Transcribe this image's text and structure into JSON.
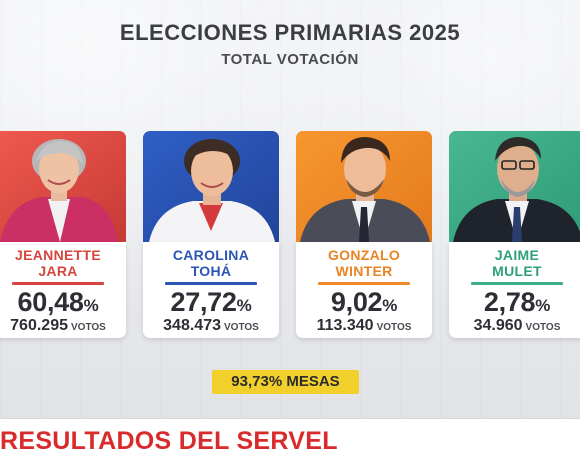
{
  "header": {
    "title": "ELECCIONES PRIMARIAS 2025",
    "subtitle": "TOTAL VOTACIÓN"
  },
  "candidates": [
    {
      "first": "JEANNETTE",
      "last": "JARA",
      "pct": "60,48",
      "pct_symbol": "%",
      "votes": "760.295",
      "votes_label": "VOTOS",
      "color": "#d6453f",
      "name_color": "#d6453f"
    },
    {
      "first": "CAROLINA",
      "last": "TOHÁ",
      "pct": "27,72",
      "pct_symbol": "%",
      "votes": "348.473",
      "votes_label": "VOTOS",
      "color": "#2c54b4",
      "name_color": "#2c54b4"
    },
    {
      "first": "GONZALO",
      "last": "WINTER",
      "pct": "9,02",
      "pct_symbol": "%",
      "votes": "113.340",
      "votes_label": "VOTOS",
      "color": "#f08a28",
      "name_color": "#e98323"
    },
    {
      "first": "JAIME",
      "last": "MULET",
      "pct": "2,78",
      "pct_symbol": "%",
      "votes": "34.960",
      "votes_label": "VOTOS",
      "color": "#3eae8a",
      "name_color": "#2fa07c"
    }
  ],
  "mesas": "93,73% MESAS",
  "bottom_bar": {
    "text": "RESULTADOS DEL SERVEL",
    "color": "#d92b2b"
  }
}
